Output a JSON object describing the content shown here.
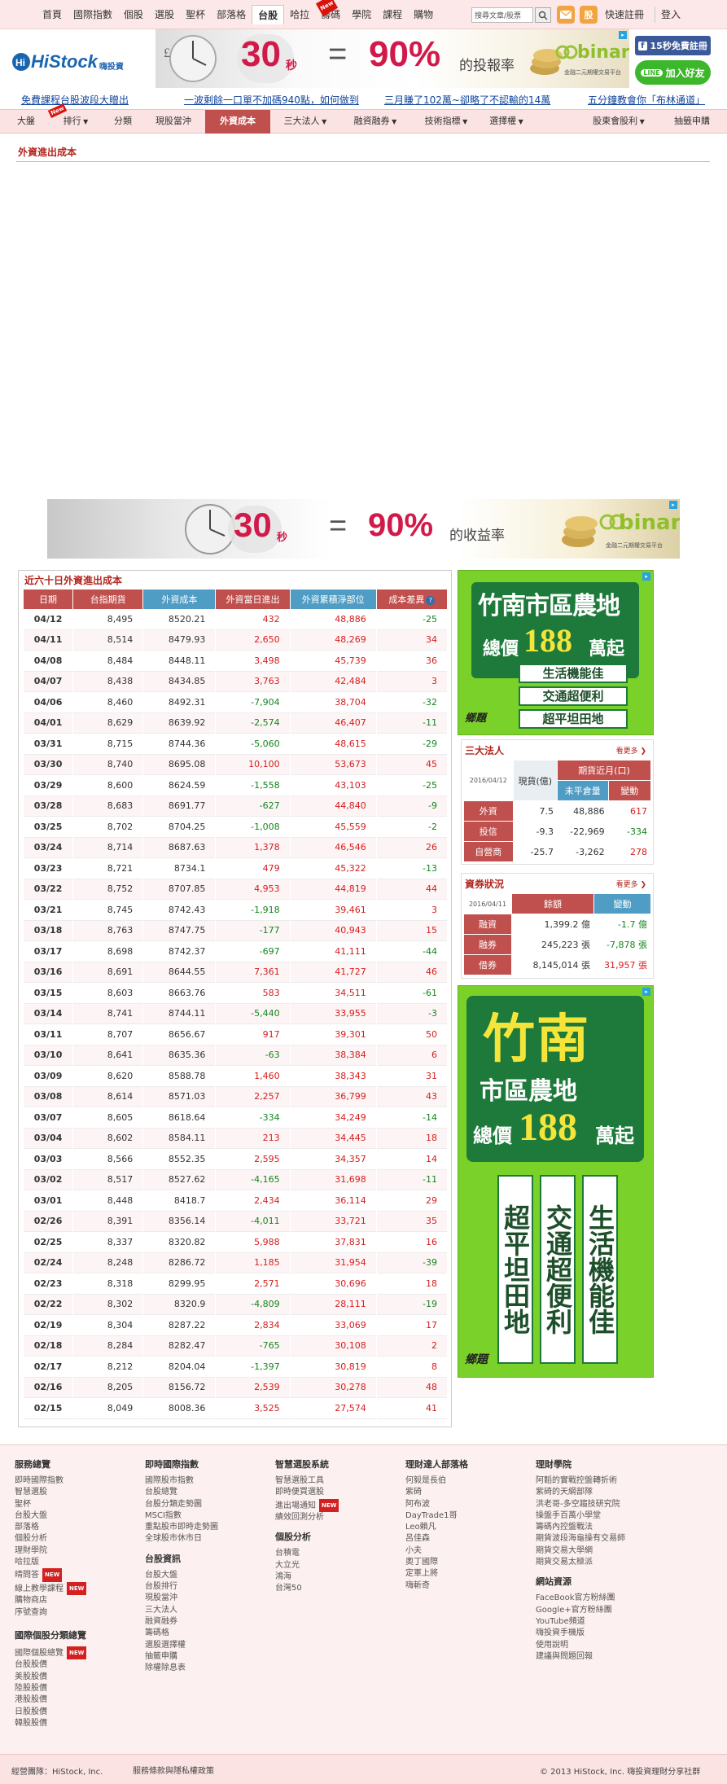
{
  "topnav": [
    "首頁",
    "國際指數",
    "個股",
    "選股",
    "聖杯",
    "部落格",
    "台股",
    "哈拉",
    "籌碼",
    "學院",
    "課程",
    "購物"
  ],
  "topnav_new_badge": "New",
  "search_placeholder": "搜尋文章/股票",
  "register": "快速註冊",
  "login": "登入",
  "logo": {
    "name": "HiStock",
    "suffix": "嗨投資"
  },
  "banner": {
    "left_number": "30",
    "left_unit": "秒",
    "eq": "=",
    "percent": "90%",
    "suffix_top": "的投報率",
    "suffix_bottom": "的收益率",
    "brand": "binary",
    "brand_sub": "金融二元期權交易平台"
  },
  "social": {
    "facebook": "15秒免費註冊",
    "line": "加入好友"
  },
  "marquee": [
    "免費課程台股波段大贈出",
    "一波剩餘一口單不加碼940點，如何做到",
    "三月賺了102萬~卻略了不認輸的14萬",
    "五分鐘教會你「布林通道」"
  ],
  "subnav": [
    "大盤",
    "排行",
    "分類",
    "現股當沖",
    "外資成本",
    "三大法人",
    "融資融券",
    "技術指標",
    "選擇權",
    "股東會股利",
    "抽籤申購"
  ],
  "subnav_new_badge": "New",
  "page_title": "外資進出成本",
  "table": {
    "title": "近六十日外資進出成本",
    "headers": [
      "日期",
      "台指期貨",
      "外資成本",
      "外資當日進出",
      "外資累積淨部位",
      "成本差異"
    ],
    "help_icon": "?",
    "rows": [
      [
        "04/12",
        "8,495",
        "8520.21",
        "432",
        "48,886",
        "-25"
      ],
      [
        "04/11",
        "8,514",
        "8479.93",
        "2,650",
        "48,269",
        "34"
      ],
      [
        "04/08",
        "8,484",
        "8448.11",
        "3,498",
        "45,739",
        "36"
      ],
      [
        "04/07",
        "8,438",
        "8434.85",
        "3,763",
        "42,484",
        "3"
      ],
      [
        "04/06",
        "8,460",
        "8492.31",
        "-7,904",
        "38,704",
        "-32"
      ],
      [
        "04/01",
        "8,629",
        "8639.92",
        "-2,574",
        "46,407",
        "-11"
      ],
      [
        "03/31",
        "8,715",
        "8744.36",
        "-5,060",
        "48,615",
        "-29"
      ],
      [
        "03/30",
        "8,740",
        "8695.08",
        "10,100",
        "53,673",
        "45"
      ],
      [
        "03/29",
        "8,600",
        "8624.59",
        "-1,558",
        "43,103",
        "-25"
      ],
      [
        "03/28",
        "8,683",
        "8691.77",
        "-627",
        "44,840",
        "-9"
      ],
      [
        "03/25",
        "8,702",
        "8704.25",
        "-1,008",
        "45,559",
        "-2"
      ],
      [
        "03/24",
        "8,714",
        "8687.63",
        "1,378",
        "46,546",
        "26"
      ],
      [
        "03/23",
        "8,721",
        "8734.1",
        "479",
        "45,322",
        "-13"
      ],
      [
        "03/22",
        "8,752",
        "8707.85",
        "4,953",
        "44,819",
        "44"
      ],
      [
        "03/21",
        "8,745",
        "8742.43",
        "-1,918",
        "39,461",
        "3"
      ],
      [
        "03/18",
        "8,763",
        "8747.75",
        "-177",
        "40,943",
        "15"
      ],
      [
        "03/17",
        "8,698",
        "8742.37",
        "-697",
        "41,111",
        "-44"
      ],
      [
        "03/16",
        "8,691",
        "8644.55",
        "7,361",
        "41,727",
        "46"
      ],
      [
        "03/15",
        "8,603",
        "8663.76",
        "583",
        "34,511",
        "-61"
      ],
      [
        "03/14",
        "8,741",
        "8744.11",
        "-5,440",
        "33,955",
        "-3"
      ],
      [
        "03/11",
        "8,707",
        "8656.67",
        "917",
        "39,301",
        "50"
      ],
      [
        "03/10",
        "8,641",
        "8635.36",
        "-63",
        "38,384",
        "6"
      ],
      [
        "03/09",
        "8,620",
        "8588.78",
        "1,460",
        "38,343",
        "31"
      ],
      [
        "03/08",
        "8,614",
        "8571.03",
        "2,257",
        "36,799",
        "43"
      ],
      [
        "03/07",
        "8,605",
        "8618.64",
        "-334",
        "34,249",
        "-14"
      ],
      [
        "03/04",
        "8,602",
        "8584.11",
        "213",
        "34,445",
        "18"
      ],
      [
        "03/03",
        "8,566",
        "8552.35",
        "2,595",
        "34,357",
        "14"
      ],
      [
        "03/02",
        "8,517",
        "8527.62",
        "-4,165",
        "31,698",
        "-11"
      ],
      [
        "03/01",
        "8,448",
        "8418.7",
        "2,434",
        "36,114",
        "29"
      ],
      [
        "02/26",
        "8,391",
        "8356.14",
        "-4,011",
        "33,721",
        "35"
      ],
      [
        "02/25",
        "8,337",
        "8320.82",
        "5,988",
        "37,831",
        "16"
      ],
      [
        "02/24",
        "8,248",
        "8286.72",
        "1,185",
        "31,954",
        "-39"
      ],
      [
        "02/23",
        "8,318",
        "8299.95",
        "2,571",
        "30,696",
        "18"
      ],
      [
        "02/22",
        "8,302",
        "8320.9",
        "-4,809",
        "28,111",
        "-19"
      ],
      [
        "02/19",
        "8,304",
        "8287.22",
        "2,834",
        "33,069",
        "17"
      ],
      [
        "02/18",
        "8,284",
        "8282.47",
        "-765",
        "30,108",
        "2"
      ],
      [
        "02/17",
        "8,212",
        "8204.04",
        "-1,397",
        "30,819",
        "8"
      ],
      [
        "02/16",
        "8,205",
        "8156.72",
        "2,539",
        "30,278",
        "48"
      ],
      [
        "02/15",
        "8,049",
        "8008.36",
        "3,525",
        "27,574",
        "41"
      ]
    ]
  },
  "ad_small": {
    "line1": "竹南市區農地",
    "line2_pre": "總價",
    "line2_num": "188",
    "line2_post": "萬起",
    "features": [
      "生活機能佳",
      "交通超便利",
      "超平坦田地"
    ],
    "brand": "鄉題"
  },
  "ad_big": {
    "line1": "竹南",
    "line2": "市區農地",
    "line3_pre": "總價",
    "line3_num": "188",
    "line3_post": "萬起",
    "cols": [
      "超平坦田地",
      "交通超便利",
      "生活機能佳"
    ],
    "brand": "鄉題"
  },
  "institutional": {
    "title": "三大法人",
    "more": "看更多",
    "date": "2016/04/12",
    "col_spot": "現貨(億)",
    "col_fut": "期貨近月(口)",
    "sub_net": "未平倉量",
    "sub_chg": "變動",
    "rows": [
      [
        "外資",
        "7.5",
        "48,886",
        "617"
      ],
      [
        "投信",
        "-9.3",
        "-22,969",
        "-334"
      ],
      [
        "自營商",
        "-25.7",
        "-3,262",
        "278"
      ]
    ]
  },
  "margin": {
    "title": "資券狀況",
    "more": "看更多",
    "date": "2016/04/11",
    "col_bal": "餘額",
    "col_chg": "變動",
    "rows": [
      [
        "融資",
        "1,399.2 億",
        "-1.7 億"
      ],
      [
        "融券",
        "245,223 張",
        "-7,878 張"
      ],
      [
        "借券",
        "8,145,014 張",
        "31,957 張"
      ]
    ]
  },
  "footer": {
    "cols": [
      {
        "title": "服務總覽",
        "items": [
          "即時國際指數",
          "智慧選股",
          "聖杯",
          "台股大盤",
          "部落格",
          "個股分析",
          "理財學院",
          "哈拉版",
          "晴問答",
          "線上教學課程",
          "購物商店",
          "序號查詢"
        ]
      },
      {
        "title": "即時國際指數",
        "items": [
          "國際股市指數",
          "台股總覽",
          "台股分類走勢圖",
          "MSCI指數",
          "重點股市即時走勢圖",
          "全球股市休市日"
        ]
      },
      {
        "title": "台股資訊",
        "items": [
          "台股大盤",
          "台股排行",
          "現股當沖",
          "三大法人",
          "融資融券",
          "籌碼格",
          "選股選擇權",
          "抽籤申購",
          "除權除息表"
        ]
      },
      {
        "title": "智慧選股系統",
        "items": [
          "智慧選股工具",
          "即時便買選股",
          "進出場通知",
          "績效回測分析"
        ]
      },
      {
        "title": "個股分析",
        "items": [
          "台積電",
          "大立光",
          "鴻海",
          "台灣50"
        ]
      },
      {
        "title": "理財達人部落格",
        "items": [
          "何毅是長伯",
          "紫碕",
          "阿布波",
          "DayTrade1哥",
          "Leo賴凡",
          "呂佳森",
          "小夫",
          "奧丁國際",
          "定軍上將",
          "嗨斬奇"
        ]
      },
      {
        "title": "理財學院",
        "items": [
          "阿韜的實戰控盤轉折術",
          "紫碕的天綱部隊",
          "洪老哥-多空趨技研究院",
          "操盤手百萬小學堂",
          "籌碼內控盤戰法",
          "期貨波段海龜操有交易師",
          "期貨交易大學網",
          "期貨交易太極派"
        ]
      },
      {
        "title": "網站資源",
        "items": [
          "FaceBook官方粉絲團",
          "Google+官方粉絲團",
          "YouTube頻道",
          "嗨投資手機版",
          "使用說明",
          "建議與問題回報"
        ]
      }
    ],
    "new_badge": "NEW",
    "bottom_left": "經營團隊：HiStock, Inc.",
    "bottom_mid": "服務條款與隱私權政策",
    "bottom_right": "© 2013 HiStock, Inc. 嗨投資理財分享社群"
  }
}
